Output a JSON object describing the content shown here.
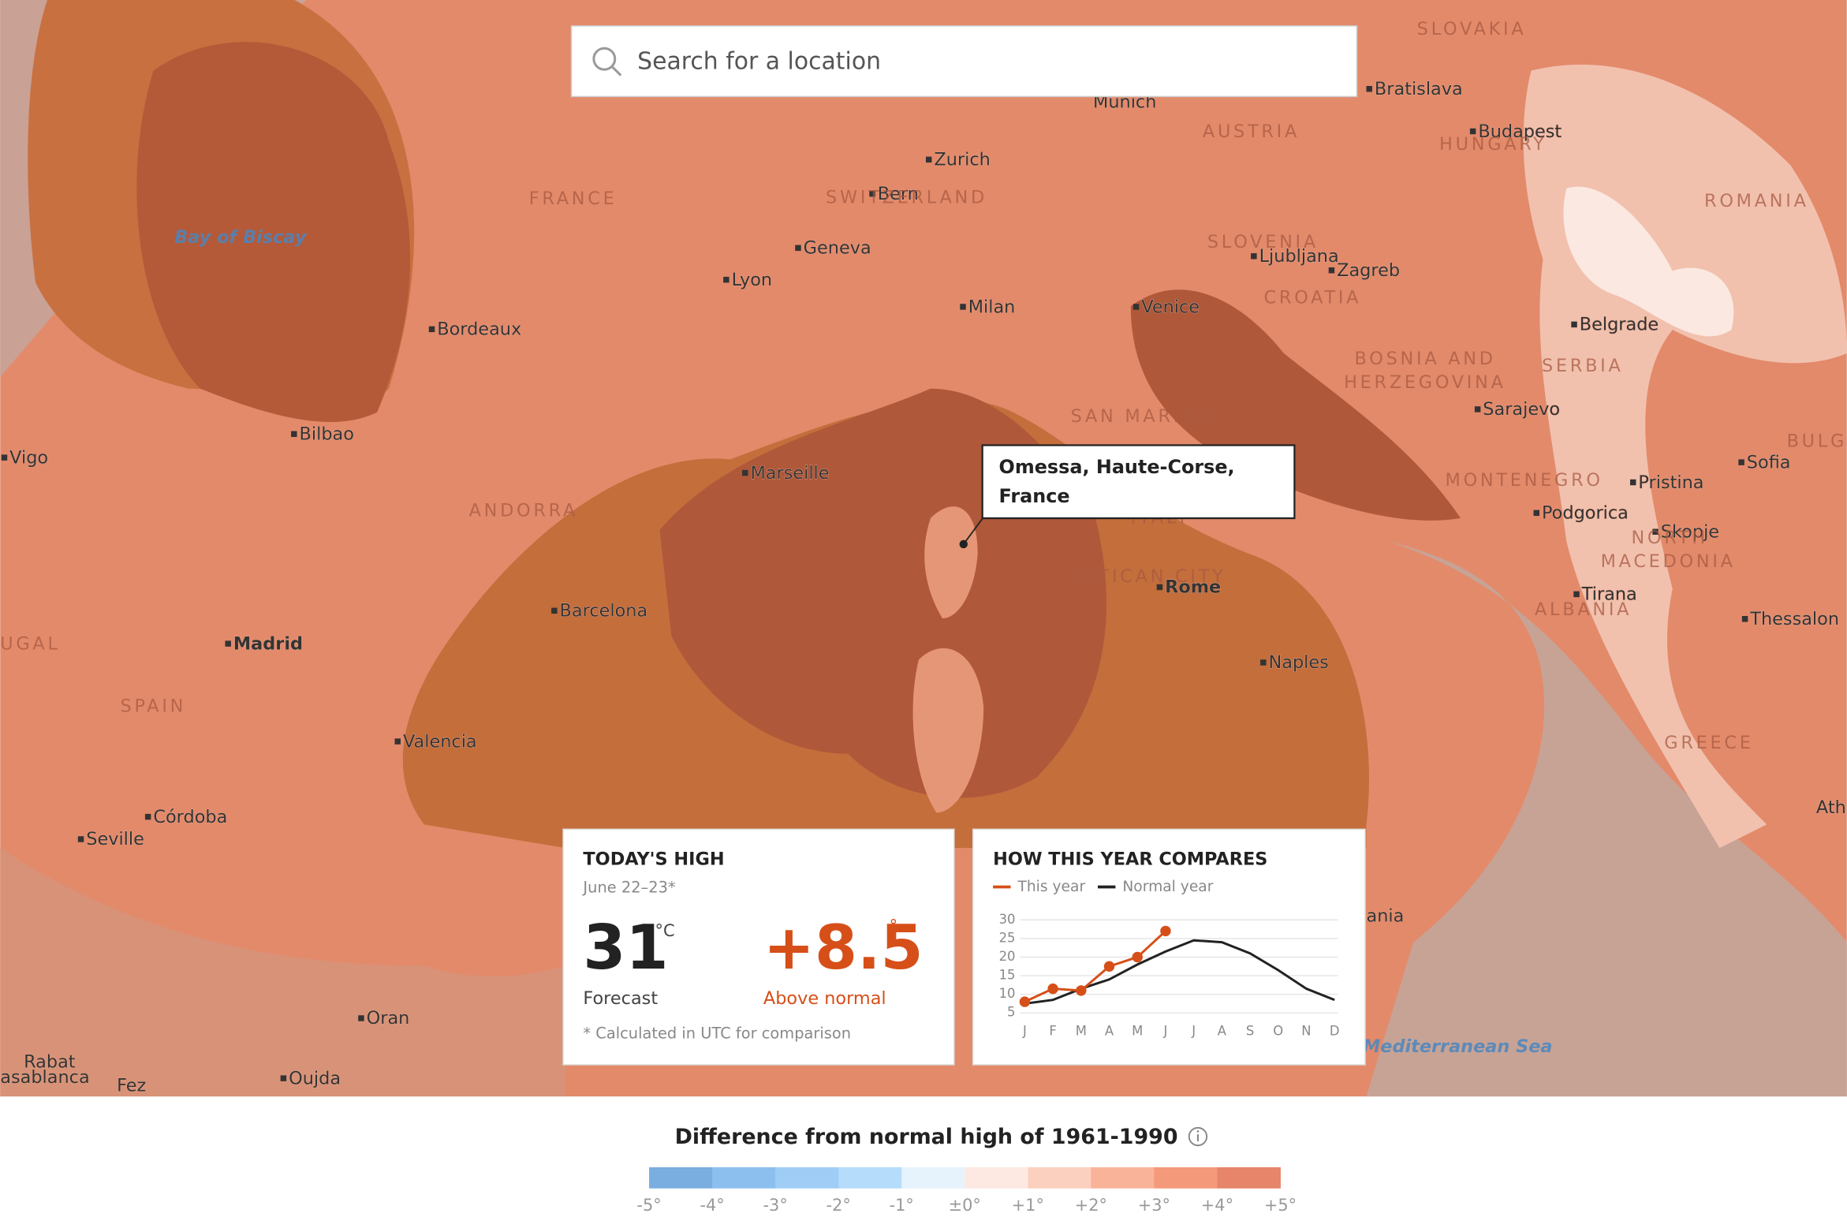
{
  "search": {
    "placeholder": "Search for a location"
  },
  "map": {
    "cities": [
      "Munich",
      "Bratislava",
      "Budapest",
      "Zurich",
      "Bern",
      "Geneva",
      "Lyon",
      "Milan",
      "Venice",
      "Ljubljana",
      "Zagreb",
      "Bordeaux",
      "Belgrade",
      "Sarajevo",
      "Bilbao",
      "Vigo",
      "Marseille",
      "Sofia",
      "Pristina",
      "Podgorica",
      "Skopje",
      "Rome",
      "Tirana",
      "Thessalon",
      "Barcelona",
      "Madrid",
      "Naples",
      "Valencia",
      "Córdoba",
      "Seville",
      "Oran",
      "Rabat",
      "asablanca",
      "Fez",
      "Oujda",
      "Ath",
      "ania"
    ],
    "regions": [
      "SLOVAKIA",
      "AUSTRIA",
      "HUNGARY",
      "FRANCE",
      "SWITZERLAND",
      "ROMANIA",
      "SLOVENIA",
      "CROATIA",
      "BOSNIA AND",
      "HERZEGOVINA",
      "SERBIA",
      "SAN MARINO",
      "MONTENEGRO",
      "BULG",
      "ANDORRA",
      "ITALY",
      "NORTH",
      "MACEDONIA",
      "VATICAN CITY",
      "ALBANIA",
      "UGAL",
      "SPAIN",
      "GREECE"
    ],
    "water": [
      "Bay of Biscay",
      "Mediterranean Sea"
    ]
  },
  "tooltip": {
    "lines": [
      "Omessa, Haute-Corse,",
      "France"
    ]
  },
  "todays_high": {
    "title": "TODAY'S HIGH",
    "date": "June 22–23*",
    "forecast": "31",
    "forecast_unit": "°C",
    "forecast_label": "Forecast",
    "anomaly": "+8.5",
    "anomaly_unit": "°",
    "anomaly_label": "Above normal",
    "note": "* Calculated in UTC for comparison"
  },
  "chart_data": {
    "type": "line",
    "title": "HOW THIS YEAR COMPARES",
    "categories": [
      "J",
      "F",
      "M",
      "A",
      "M",
      "J",
      "J",
      "A",
      "S",
      "O",
      "N",
      "D"
    ],
    "series": [
      {
        "name": "This year",
        "color": "#d64f19",
        "markers": true,
        "values": [
          8,
          11.5,
          11,
          17.5,
          20,
          27,
          null,
          null,
          null,
          null,
          null,
          null
        ]
      },
      {
        "name": "Normal year",
        "color": "#222222",
        "markers": false,
        "values": [
          7.5,
          8.5,
          11.5,
          14,
          18,
          21.5,
          24.5,
          24,
          21,
          16.5,
          11.5,
          8.5
        ]
      }
    ],
    "ylim": [
      5,
      30
    ],
    "yticks": [
      5,
      10,
      15,
      20,
      25,
      30
    ],
    "grid": true
  },
  "legend": {
    "title": "Difference from normal high of 1961-1990",
    "ticks": [
      "-5°",
      "-4°",
      "-3°",
      "-2°",
      "-1°",
      "±0°",
      "+1°",
      "+2°",
      "+3°",
      "+4°",
      "+5°"
    ],
    "colors": [
      "#7aade0",
      "#8cbfee",
      "#9fcdf5",
      "#b5dcfa",
      "#e6f3fc",
      "#fde9e2",
      "#fcd0bf",
      "#f9b398",
      "#f49a7b",
      "#e6856a"
    ]
  }
}
